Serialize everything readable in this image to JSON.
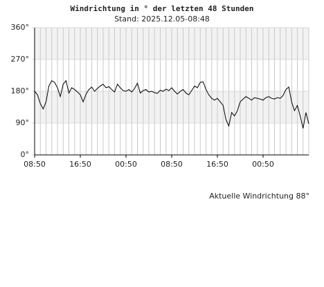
{
  "chart_data": {
    "type": "line",
    "title": "Windrichtung in ° der letzten 48 Stunden",
    "subtitle": "Stand: 2025.12.05-08:48",
    "annotation": "Aktuelle Windrichtung 88°",
    "color": "#000000",
    "xlim": [
      0,
      48
    ],
    "xticks": [
      {
        "value": 0,
        "label": "08:50"
      },
      {
        "value": 8,
        "label": "16:50"
      },
      {
        "value": 16,
        "label": "00:50"
      },
      {
        "value": 24,
        "label": "08:50"
      },
      {
        "value": 32,
        "label": "16:50"
      },
      {
        "value": 40,
        "label": "00:50"
      }
    ],
    "xminor": 1,
    "ylim": [
      0,
      360
    ],
    "yticks": [
      {
        "value": 0,
        "label": "0°"
      },
      {
        "value": 90,
        "label": "90°"
      },
      {
        "value": 180,
        "label": "180°"
      },
      {
        "value": 270,
        "label": "270°"
      },
      {
        "value": 360,
        "label": "360°"
      }
    ],
    "grid": true,
    "x": [
      0,
      0.5,
      1,
      1.5,
      2,
      2.5,
      3,
      3.5,
      4,
      4.5,
      5,
      5.5,
      6,
      6.5,
      7,
      7.5,
      8,
      8.5,
      9,
      9.5,
      10,
      10.5,
      11,
      11.5,
      12,
      12.5,
      13,
      13.5,
      14,
      14.5,
      15,
      15.5,
      16,
      16.5,
      17,
      17.5,
      18,
      18.5,
      19,
      19.5,
      20,
      20.5,
      21,
      21.5,
      22,
      22.5,
      23,
      23.5,
      24,
      24.5,
      25,
      25.5,
      26,
      26.5,
      27,
      27.5,
      28,
      28.5,
      29,
      29.5,
      30,
      30.5,
      31,
      31.5,
      32,
      32.5,
      33,
      33.5,
      34,
      34.5,
      35,
      35.5,
      36,
      36.5,
      37,
      37.5,
      38,
      38.5,
      39,
      39.5,
      40,
      40.5,
      41,
      41.5,
      42,
      42.5,
      43,
      43.5,
      44,
      44.5,
      45,
      45.5,
      46,
      46.5,
      47,
      47.5,
      48
    ],
    "values": [
      180,
      170,
      145,
      130,
      150,
      195,
      210,
      205,
      190,
      165,
      200,
      210,
      175,
      190,
      185,
      178,
      170,
      150,
      172,
      185,
      192,
      180,
      188,
      195,
      200,
      190,
      193,
      185,
      178,
      200,
      190,
      182,
      180,
      185,
      178,
      188,
      203,
      175,
      182,
      185,
      178,
      180,
      176,
      174,
      183,
      180,
      186,
      182,
      190,
      180,
      172,
      180,
      185,
      175,
      170,
      182,
      195,
      190,
      205,
      207,
      185,
      170,
      160,
      155,
      160,
      150,
      140,
      100,
      82,
      120,
      110,
      125,
      150,
      158,
      165,
      160,
      155,
      162,
      160,
      158,
      155,
      162,
      165,
      160,
      158,
      162,
      160,
      168,
      185,
      192,
      150,
      125,
      140,
      110,
      75,
      120,
      88
    ]
  }
}
